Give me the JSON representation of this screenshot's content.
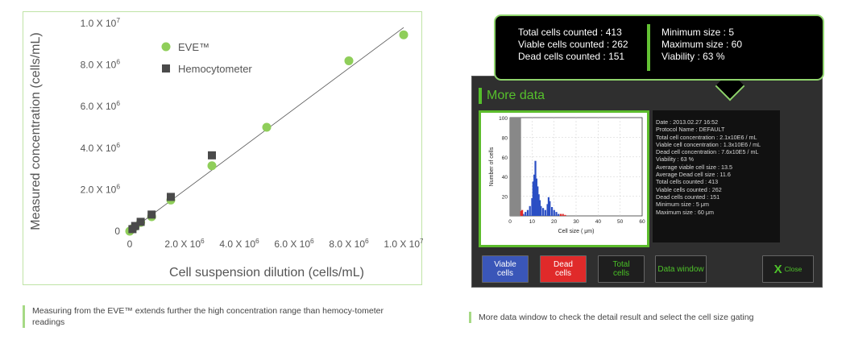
{
  "scatter_panel": {
    "chart_data": {
      "type": "scatter",
      "xlabel": "Cell suspension dilution (cells/mL)",
      "ylabel": "Measured concentration (cells/mL)",
      "xlim": [
        0,
        10000000
      ],
      "ylim": [
        0,
        10000000
      ],
      "x_ticks": [
        {
          "value": 0,
          "label": "0"
        },
        {
          "value": 2000000,
          "label": "2.0 X 10^6"
        },
        {
          "value": 4000000,
          "label": "4.0 X 10^6"
        },
        {
          "value": 6000000,
          "label": "6.0 X 10^6"
        },
        {
          "value": 8000000,
          "label": "8.0 X 10^6"
        },
        {
          "value": 10000000,
          "label": "1.0 X 10^7"
        }
      ],
      "y_ticks": [
        {
          "value": 0,
          "label": "0"
        },
        {
          "value": 2000000,
          "label": "2.0 X 10^6"
        },
        {
          "value": 4000000,
          "label": "4.0 X 10^6"
        },
        {
          "value": 6000000,
          "label": "6.0 X 10^6"
        },
        {
          "value": 8000000,
          "label": "8.0 X 10^6"
        },
        {
          "value": 10000000,
          "label": "1.0 X 10^7"
        }
      ],
      "legend_position": "top-left",
      "grid": false,
      "series": [
        {
          "name": "EVE™",
          "marker": "circle",
          "color": "#8fce5a",
          "x": [
            0,
            100000,
            200000,
            400000,
            800000,
            1500000,
            3000000,
            5000000,
            8000000,
            10000000
          ],
          "y": [
            0,
            120000,
            230000,
            420000,
            700000,
            1500000,
            3150000,
            5000000,
            8200000,
            9450000
          ]
        },
        {
          "name": "Hemocytometer",
          "marker": "square",
          "color": "#4a4a4a",
          "x": [
            100000,
            200000,
            400000,
            800000,
            1500000,
            3000000
          ],
          "y": [
            100000,
            250000,
            450000,
            800000,
            1650000,
            3650000
          ]
        }
      ],
      "trendline": {
        "x": [
          0,
          10000000
        ],
        "y": [
          0,
          9800000
        ]
      }
    }
  },
  "captions": {
    "left": "Measuring from the EVE™ extends further the high concentration range than hemocy-tometer readings",
    "right": "More data window to check the detail result and select the cell size gating"
  },
  "tooltip": {
    "col1": [
      "Total cells counted : 413",
      "Viable cells counted : 262",
      "Dead cells counted : 151"
    ],
    "col2": [
      "Minimum size : 5",
      "Maximum size : 60",
      "Viability : 63 %"
    ]
  },
  "device": {
    "header": "More data",
    "histogram": {
      "chart_data": {
        "type": "bar",
        "xlabel": "Cell size ( μm)",
        "ylabel": "Number of cells",
        "xlim": [
          0,
          60
        ],
        "ylim": [
          0,
          100
        ],
        "x_ticks": [
          "0",
          "10",
          "20",
          "30",
          "40",
          "50",
          "60"
        ],
        "y_ticks": [
          "20",
          "40",
          "60",
          "80",
          "100"
        ],
        "gated_region": [
          0,
          5
        ],
        "series": [
          {
            "name": "Viable",
            "color": "#2b4fc4",
            "x": [
              6,
              7,
              8,
              9,
              10,
              10.5,
              11,
              11.5,
              12,
              12.5,
              13,
              13.5,
              14,
              15,
              16,
              17,
              17.5,
              18,
              19,
              20,
              21,
              22
            ],
            "y": [
              2,
              4,
              6,
              10,
              18,
              35,
              42,
              56,
              38,
              30,
              22,
              16,
              10,
              8,
              6,
              12,
              19,
              15,
              9,
              6,
              4,
              2
            ]
          },
          {
            "name": "Dead",
            "color": "#e02a2a",
            "x": [
              5,
              5.5,
              23,
              24,
              25
            ],
            "y": [
              5,
              6,
              2,
              2,
              1
            ]
          }
        ]
      }
    },
    "info_lines": [
      "Date : 2013.02.27 16:52",
      "Protocol Name : DEFAULT",
      "Total cell concentration : 2.1x10E6 / mL",
      "Viable cell concentration : 1.3x10E6 / mL",
      "Dead cell concentration : 7.6x10E5 / mL",
      "Viability : 63 %",
      "Average viable cell size : 13.5",
      "Average Dead cell size : 11.6",
      "Total cells counted : 413",
      "Viable cells counted : 262",
      "Dead cells counted : 151",
      "Minimum size : 5 μm",
      "Maximum size : 60 μm"
    ],
    "buttons": {
      "viable": [
        "Viable",
        "cells"
      ],
      "dead": [
        "Dead",
        "cells"
      ],
      "total": [
        "Total",
        "cells"
      ],
      "data_window": "Data window",
      "close_x": "X",
      "close": "Close"
    }
  }
}
